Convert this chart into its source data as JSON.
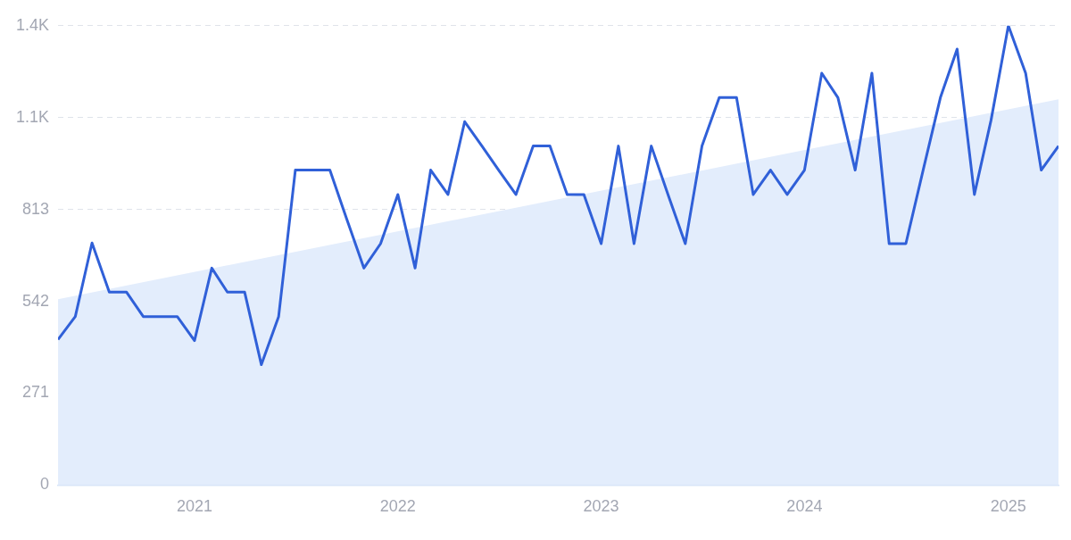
{
  "chart_data": {
    "type": "line",
    "x": [
      "2020-05",
      "2020-06",
      "2020-07",
      "2020-08",
      "2020-09",
      "2020-10",
      "2020-11",
      "2020-12",
      "2021-01",
      "2021-02",
      "2021-03",
      "2021-04",
      "2021-05",
      "2021-06",
      "2021-07",
      "2021-08",
      "2021-09",
      "2021-10",
      "2021-11",
      "2021-12",
      "2022-01",
      "2022-02",
      "2022-03",
      "2022-04",
      "2022-05",
      "2022-06",
      "2022-07",
      "2022-08",
      "2022-09",
      "2022-10",
      "2022-11",
      "2022-12",
      "2023-01",
      "2023-02",
      "2023-03",
      "2023-04",
      "2023-05",
      "2023-06",
      "2023-07",
      "2023-08",
      "2023-09",
      "2023-10",
      "2023-11",
      "2023-12",
      "2024-01",
      "2024-02",
      "2024-03",
      "2024-04",
      "2024-05",
      "2024-06",
      "2024-07",
      "2024-08",
      "2024-09",
      "2024-10",
      "2024-11",
      "2024-12",
      "2025-01",
      "2025-02",
      "2025-03",
      "2025-04"
    ],
    "series": [
      {
        "color": "#3060d8",
        "values": [
          429,
          497,
          714,
          569,
          569,
          497,
          497,
          497,
          426,
          640,
          569,
          569,
          355,
          497,
          929,
          929,
          929,
          786,
          640,
          712,
          857,
          640,
          929,
          857,
          1072,
          1000,
          929,
          857,
          1000,
          1000,
          857,
          857,
          712,
          1000,
          712,
          1000,
          857,
          712,
          1000,
          1143,
          1143,
          857,
          929,
          857,
          929,
          1215,
          1143,
          929,
          1215,
          712,
          712,
          929,
          1143,
          1286,
          857,
          1077,
          1355,
          1215,
          929,
          1000
        ]
      },
      {
        "type": "area",
        "color": "#e3edfc",
        "x": [
          "2020-05",
          "2025-04"
        ],
        "values": [
          548,
          1138
        ]
      }
    ],
    "xlim": [
      "2020-05",
      "2025-04"
    ],
    "xticks": [
      "2021",
      "2022",
      "2023",
      "2024",
      "2025"
    ],
    "ylim": [
      0,
      1355
    ],
    "yticks": [
      0,
      271,
      542,
      813,
      {
        "value": 1084,
        "label": "1.1K"
      },
      {
        "value": 1355,
        "label": "1.4K"
      }
    ],
    "grid": "y",
    "legend": false,
    "marker": "none"
  }
}
